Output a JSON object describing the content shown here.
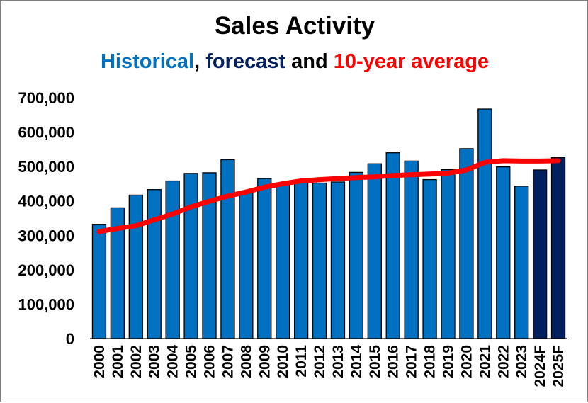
{
  "chart_data": {
    "type": "bar",
    "title": "Sales Activity",
    "subtitle": {
      "historical": "Historical",
      "sep1": ", ",
      "forecast": "forecast",
      "sep2": " and ",
      "average": "10-year average"
    },
    "colors": {
      "historical": "#0070c0",
      "forecast": "#002060",
      "average": "#ff0000",
      "text": "#000000"
    },
    "categories": [
      "2000",
      "2001",
      "2002",
      "2003",
      "2004",
      "2005",
      "2006",
      "2007",
      "2008",
      "2009",
      "2010",
      "2011",
      "2012",
      "2013",
      "2014",
      "2015",
      "2016",
      "2017",
      "2018",
      "2019",
      "2020",
      "2021",
      "2022",
      "2023",
      "2024F",
      "2025F"
    ],
    "bar_kind": [
      "historical",
      "historical",
      "historical",
      "historical",
      "historical",
      "historical",
      "historical",
      "historical",
      "historical",
      "historical",
      "historical",
      "historical",
      "historical",
      "historical",
      "historical",
      "historical",
      "historical",
      "historical",
      "historical",
      "historical",
      "historical",
      "historical",
      "historical",
      "historical",
      "forecast",
      "forecast"
    ],
    "series": [
      {
        "values": [
          332000,
          380000,
          417000,
          433000,
          458000,
          480000,
          482000,
          520000,
          426000,
          465000,
          448000,
          458000,
          452000,
          455000,
          483000,
          508000,
          540000,
          516000,
          462000,
          491000,
          552000,
          667000,
          499000,
          443000,
          490000,
          526000
        ]
      },
      {
        "type": "line",
        "values": [
          311000,
          320000,
          328000,
          345000,
          362000,
          383000,
          399000,
          414000,
          426000,
          440000,
          450000,
          458000,
          462000,
          465000,
          468000,
          470000,
          474000,
          476000,
          478000,
          481000,
          490000,
          512000,
          517000,
          516000,
          516000,
          517000
        ]
      }
    ],
    "ylim": [
      0,
      700000
    ],
    "yticks": [
      "0",
      "100,000",
      "200,000",
      "300,000",
      "400,000",
      "500,000",
      "600,000",
      "700,000"
    ],
    "grid": false
  }
}
